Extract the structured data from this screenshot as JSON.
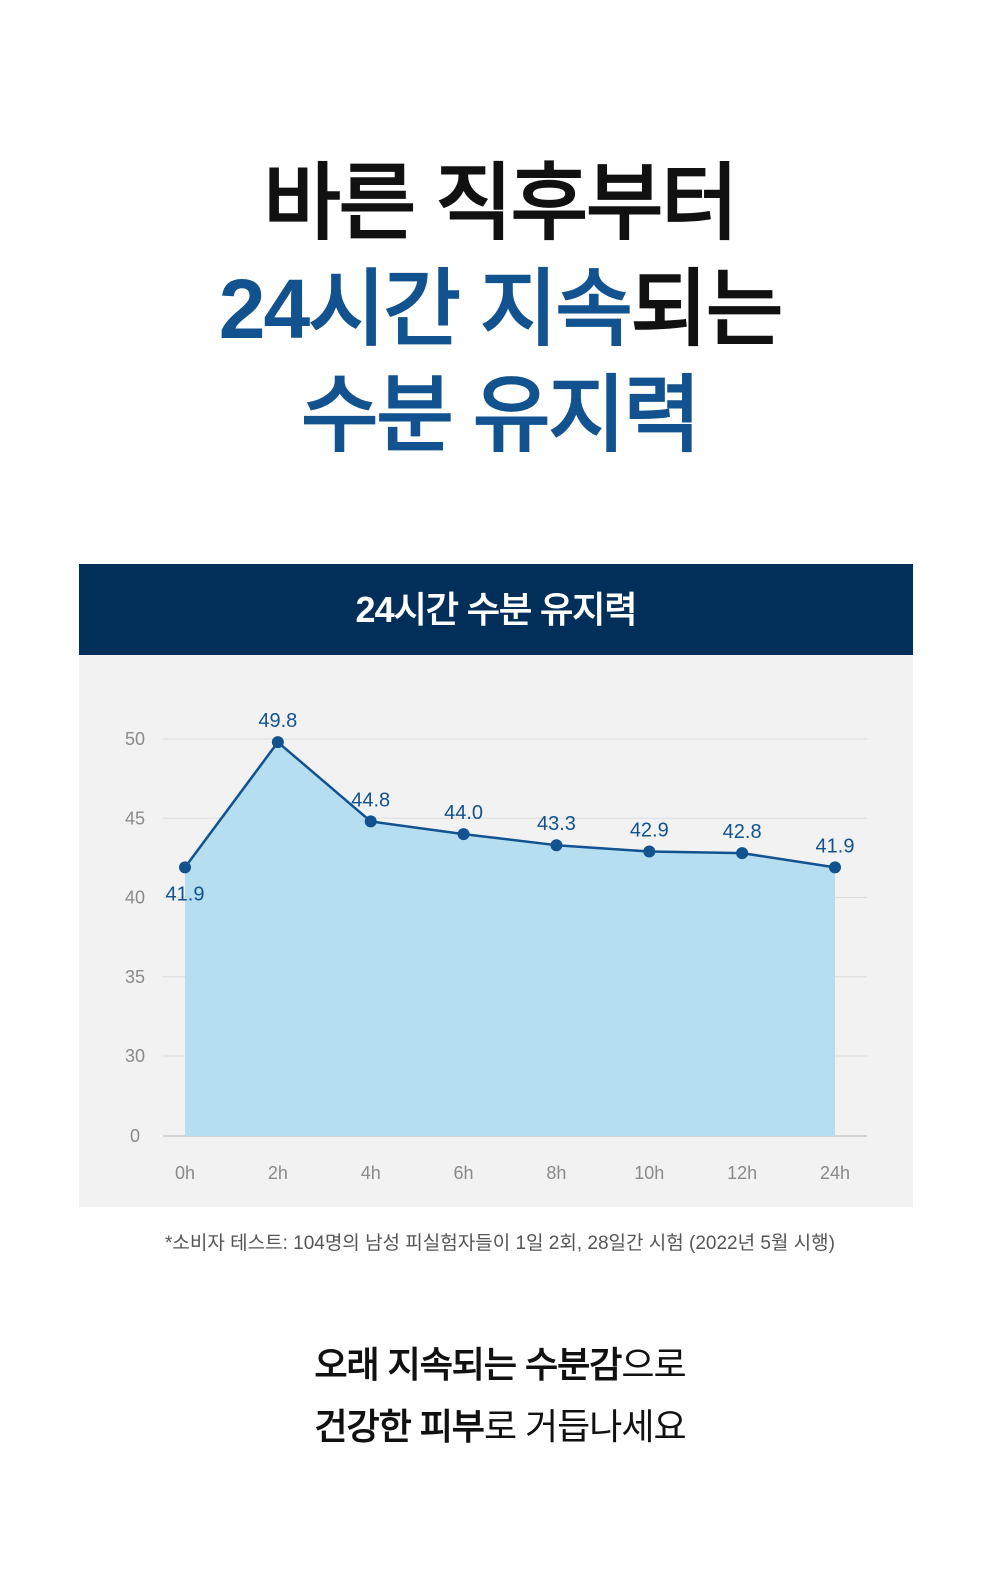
{
  "headline": {
    "line1": "바른 직후부터",
    "line2_blue": "24시간 지속",
    "line2_dark": "되는",
    "line3": "수분 유지력"
  },
  "chart_header": "24시간 수분 유지력",
  "chart_data": {
    "type": "area",
    "x": [
      "0h",
      "2h",
      "4h",
      "6h",
      "8h",
      "10h",
      "12h",
      "24h"
    ],
    "values": [
      41.9,
      49.8,
      44.8,
      44.0,
      43.3,
      42.9,
      42.8,
      41.9
    ],
    "data_labels": [
      "41.9",
      "49.8",
      "44.8",
      "44.0",
      "43.3",
      "42.9",
      "42.8",
      "41.9"
    ],
    "y_ticks": [
      "0",
      "30",
      "35",
      "40",
      "45",
      "50"
    ],
    "y_axis_break": "broken axis: 0 then 30–50",
    "grid": true,
    "colors": {
      "line": "#11528f",
      "fill": "#b5def0",
      "point": "#11528f",
      "label": "#11528f"
    }
  },
  "footnote": "*소비자 테스트: 104명의 남성 피실험자들이 1일 2회, 28일간 시험 (2022년 5월 시행)",
  "bottom": {
    "line1_bold": "오래 지속되는 수분감",
    "line1_regular": "으로",
    "line2_bold": "건강한 피부",
    "line2_regular": "로 거듭나세요"
  }
}
